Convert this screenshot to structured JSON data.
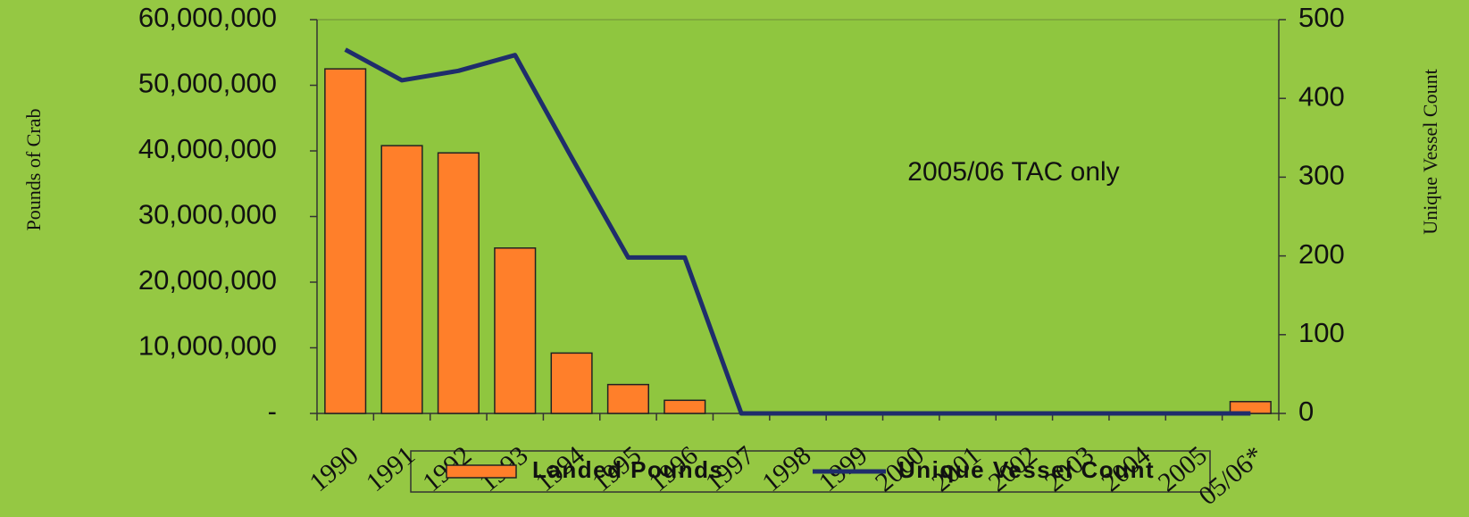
{
  "chart_data": {
    "type": "bar_line",
    "categories": [
      "1990",
      "1991",
      "1992",
      "1993",
      "1994",
      "1995",
      "1996",
      "1997",
      "1998",
      "1999",
      "2000",
      "2001",
      "2002",
      "2003",
      "2004",
      "2005",
      "05/06*"
    ],
    "series": [
      {
        "name": "Landed Pounds",
        "color": "#ff7f2a",
        "type": "bar",
        "axis": "y",
        "values": [
          52500000,
          40800000,
          39700000,
          25200000,
          9200000,
          4400000,
          2000000,
          0,
          0,
          0,
          0,
          0,
          0,
          0,
          0,
          0,
          1800000
        ]
      },
      {
        "name": "Unique Vessel Count",
        "color": "#1f2d6b",
        "type": "line",
        "axis": "y2",
        "values": [
          462,
          423,
          435,
          455,
          325,
          198,
          198,
          0,
          0,
          0,
          0,
          0,
          0,
          0,
          0,
          0,
          0
        ]
      }
    ],
    "ylabel": "Pounds of Crab",
    "y2label": "Unique Vessel Count",
    "annotation": "2005/06 TAC only",
    "ylim": [
      0,
      60000000
    ],
    "yticks": [
      {
        "value": 0,
        "label": "-"
      },
      {
        "value": 10000000,
        "label": "10,000,000"
      },
      {
        "value": 20000000,
        "label": "20,000,000"
      },
      {
        "value": 30000000,
        "label": "30,000,000"
      },
      {
        "value": 40000000,
        "label": "40,000,000"
      },
      {
        "value": 50000000,
        "label": "50,000,000"
      },
      {
        "value": 60000000,
        "label": "60,000,000"
      }
    ],
    "y2lim": [
      0,
      500
    ],
    "y2ticks": [
      0,
      100,
      200,
      300,
      400,
      500
    ],
    "legend": "bottom"
  }
}
